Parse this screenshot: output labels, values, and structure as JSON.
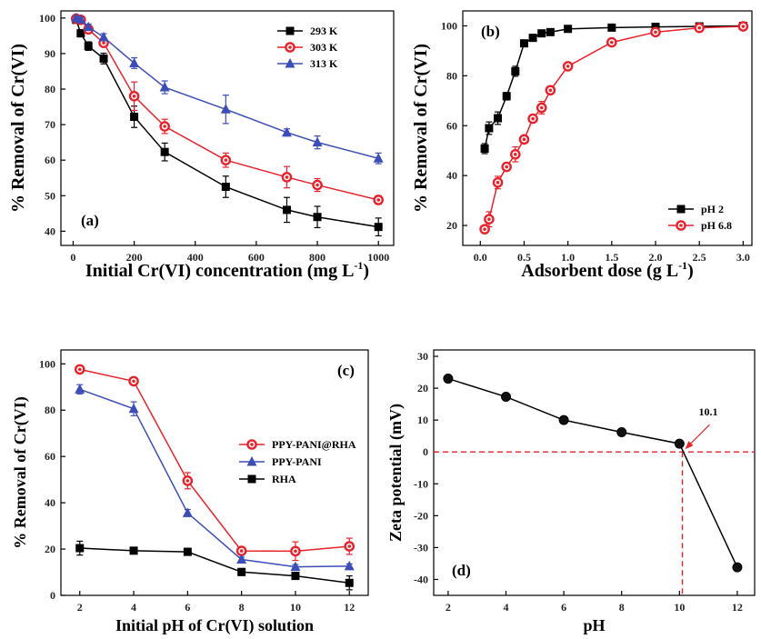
{
  "chart_data": [
    {
      "type": "line",
      "panel_label": "(a)",
      "xlabel": "Initial Cr(VI) concentration (mg L",
      "xlabel_sup": "-1",
      "xlabel_end": ")",
      "ylabel": "% Removal of Cr(VI)",
      "xlim": [
        -40,
        1050
      ],
      "ylim": [
        36,
        102
      ],
      "xticks": [
        0,
        200,
        400,
        600,
        800,
        1000
      ],
      "yticks": [
        40,
        50,
        60,
        70,
        80,
        90,
        100
      ],
      "legend_position": "top-right",
      "series": [
        {
          "name": "293 K",
          "color": "#000000",
          "marker": "square",
          "x": [
            10,
            25,
            50,
            100,
            200,
            300,
            500,
            700,
            800,
            1000
          ],
          "y": [
            99.5,
            95.7,
            92.1,
            88.6,
            72.2,
            62.3,
            52.5,
            46.0,
            44.0,
            41.2
          ],
          "err": [
            1.0,
            1.0,
            1.2,
            1.5,
            3.0,
            2.5,
            3.0,
            3.5,
            3.0,
            2.5
          ]
        },
        {
          "name": "303 K",
          "color": "#e8222a",
          "marker": "circle",
          "x": [
            10,
            25,
            50,
            100,
            200,
            300,
            500,
            700,
            800,
            1000
          ],
          "y": [
            99.8,
            99.5,
            96.8,
            93.0,
            78.0,
            69.5,
            60.0,
            55.2,
            53.0,
            48.8
          ],
          "err": [
            0.8,
            0.8,
            1.0,
            1.0,
            4.0,
            2.0,
            2.0,
            3.0,
            1.8,
            1.2
          ]
        },
        {
          "name": "313 K",
          "color": "#3d4db7",
          "marker": "triangle",
          "x": [
            10,
            25,
            50,
            100,
            200,
            300,
            500,
            700,
            800,
            1000
          ],
          "y": [
            100.0,
            99.6,
            97.5,
            94.6,
            87.3,
            80.5,
            74.3,
            67.8,
            65.0,
            60.5
          ],
          "err": [
            0.5,
            0.5,
            0.8,
            1.0,
            1.5,
            1.8,
            4.0,
            1.0,
            1.8,
            1.5
          ]
        }
      ]
    },
    {
      "type": "line",
      "panel_label": "(b)",
      "xlabel": "Adsorbent dose (g L",
      "xlabel_sup": "-1",
      "xlabel_end": ")",
      "ylabel": "% Removal of Cr(VI)",
      "xlim": [
        -0.2,
        3.1
      ],
      "ylim": [
        12,
        106
      ],
      "xticks": [
        0.0,
        0.5,
        1.0,
        1.5,
        2.0,
        2.5,
        3.0
      ],
      "xtick_labels": [
        "0.0",
        "0.5",
        "1.0",
        "1.5",
        "2.0",
        "2.5",
        "3.0"
      ],
      "yticks": [
        20,
        40,
        60,
        80,
        100
      ],
      "legend_position": "bottom-right",
      "series": [
        {
          "name": "pH 2",
          "color": "#000000",
          "marker": "square",
          "x": [
            0.05,
            0.1,
            0.2,
            0.3,
            0.4,
            0.5,
            0.6,
            0.7,
            0.8,
            1.0,
            1.5,
            2.0,
            2.5,
            3.0
          ],
          "y": [
            50.8,
            59.0,
            63.0,
            71.8,
            81.8,
            93.0,
            95.2,
            97.0,
            97.5,
            98.8,
            99.3,
            99.6,
            99.8,
            100.0
          ],
          "err": [
            2.0,
            2.5,
            2.5,
            1.5,
            2.0,
            1.0,
            1.0,
            0.8,
            0.5,
            0.5,
            0.3,
            0.3,
            0.3,
            0.3
          ]
        },
        {
          "name": "pH 6.8",
          "color": "#e8222a",
          "marker": "circle",
          "x": [
            0.05,
            0.1,
            0.2,
            0.3,
            0.4,
            0.5,
            0.6,
            0.7,
            0.8,
            1.0,
            1.5,
            2.0,
            2.5,
            3.0
          ],
          "y": [
            18.5,
            22.5,
            37.2,
            43.5,
            48.5,
            54.5,
            62.8,
            67.2,
            74.2,
            83.8,
            93.4,
            97.5,
            99.2,
            99.8
          ],
          "err": [
            1.5,
            3.0,
            2.5,
            1.5,
            3.0,
            1.5,
            1.5,
            2.5,
            1.5,
            1.0,
            0.8,
            0.8,
            0.5,
            0.3
          ]
        }
      ]
    },
    {
      "type": "line",
      "panel_label": "(c)",
      "xlabel": "Initial pH of Cr(VI) solution",
      "ylabel": "% Removal of Cr(VI)",
      "xlim": [
        1.3,
        12.7
      ],
      "ylim": [
        0,
        106
      ],
      "xticks": [
        2,
        4,
        6,
        8,
        10,
        12
      ],
      "yticks": [
        0,
        20,
        40,
        60,
        80,
        100
      ],
      "legend_position": "center-right",
      "series": [
        {
          "name": "PPY-PANI@RHA",
          "color": "#e8222a",
          "marker": "circle",
          "x": [
            2,
            4,
            6,
            8,
            10,
            12
          ],
          "y": [
            97.6,
            92.5,
            49.5,
            19.2,
            19.1,
            21.2
          ],
          "err": [
            1.0,
            1.0,
            3.5,
            1.5,
            4.0,
            3.5
          ]
        },
        {
          "name": "PPY-PANI",
          "color": "#3d4db7",
          "marker": "triangle",
          "x": [
            2,
            4,
            6,
            8,
            10,
            12
          ],
          "y": [
            89.0,
            80.6,
            35.6,
            15.5,
            12.3,
            12.6
          ],
          "err": [
            2.0,
            3.0,
            1.5,
            1.0,
            1.0,
            1.0
          ]
        },
        {
          "name": "RHA",
          "color": "#000000",
          "marker": "square",
          "x": [
            2,
            4,
            6,
            8,
            10,
            12
          ],
          "y": [
            20.4,
            19.3,
            18.8,
            10.1,
            8.4,
            5.4
          ],
          "err": [
            3.0,
            1.0,
            1.5,
            1.5,
            1.5,
            3.0
          ]
        }
      ]
    },
    {
      "type": "line",
      "panel_label": "(d)",
      "xlabel": "pH",
      "ylabel": "Zeta potential (mV)",
      "xlim": [
        1.5,
        12.6
      ],
      "ylim": [
        -45,
        32
      ],
      "xticks": [
        2,
        4,
        6,
        8,
        10,
        12
      ],
      "yticks": [
        -40,
        -30,
        -20,
        -10,
        0,
        10,
        20,
        30
      ],
      "series": [
        {
          "color": "#000000",
          "marker": "circle",
          "x": [
            2,
            4,
            6,
            8,
            10,
            12
          ],
          "y": [
            23.0,
            17.3,
            10.0,
            6.2,
            2.6,
            -36.2
          ]
        }
      ],
      "zero_line": 0,
      "pzc_line": 10.1,
      "annotation": "10.1",
      "reference_color": "#e8222a"
    }
  ]
}
